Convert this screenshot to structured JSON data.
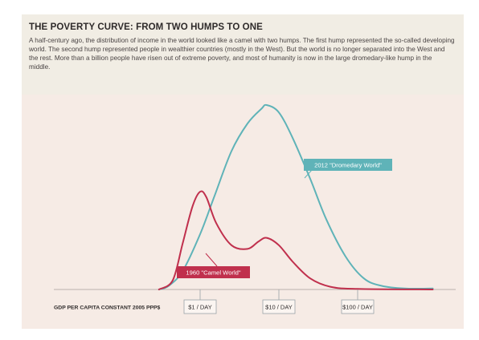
{
  "header": {
    "title": "THE POVERTY CURVE: FROM TWO HUMPS TO ONE",
    "description": "A half-century ago, the distribution of income in the world looked like a camel with two humps. The first hump represented the so-called developing world. The second hump represented people in wealthier countries (mostly in the West). But the world is no longer separated into the West and the rest. More than a billion people have risen out of extreme poverty, and most of humanity is now in the large dromedary-like hump in the middle."
  },
  "chart_data": {
    "type": "line",
    "title": "THE POVERTY CURVE: FROM TWO HUMPS TO ONE",
    "xlabel": "GDP PER CAPITA CONSTANT 2005 PPP$",
    "ylabel": "",
    "x_scale": "log",
    "xlim": [
      0.25,
      1000
    ],
    "ylim": [
      0,
      1
    ],
    "grid": false,
    "x_ticks": [
      {
        "value": 1,
        "label": "$1 / DAY"
      },
      {
        "value": 10,
        "label": "$10 / DAY"
      },
      {
        "value": 100,
        "label": "$100 / DAY"
      }
    ],
    "series": [
      {
        "name": "2012 \"Dromedary World\"",
        "color": "#5fb3b8",
        "points": [
          [
            0.3,
            0.0
          ],
          [
            0.4,
            0.02
          ],
          [
            0.6,
            0.1
          ],
          [
            1.0,
            0.3
          ],
          [
            1.5,
            0.5
          ],
          [
            2.5,
            0.75
          ],
          [
            4,
            0.9
          ],
          [
            6,
            0.98
          ],
          [
            7,
            1.0
          ],
          [
            10,
            0.96
          ],
          [
            15,
            0.82
          ],
          [
            25,
            0.6
          ],
          [
            40,
            0.38
          ],
          [
            70,
            0.18
          ],
          [
            120,
            0.06
          ],
          [
            200,
            0.02
          ],
          [
            400,
            0.005
          ],
          [
            900,
            0.005
          ]
        ]
      },
      {
        "name": "1960 \"Camel World\"",
        "color": "#c0304d",
        "points": [
          [
            0.3,
            0.0
          ],
          [
            0.45,
            0.05
          ],
          [
            0.6,
            0.25
          ],
          [
            0.8,
            0.45
          ],
          [
            1.0,
            0.53
          ],
          [
            1.2,
            0.5
          ],
          [
            1.6,
            0.36
          ],
          [
            2.5,
            0.24
          ],
          [
            4,
            0.22
          ],
          [
            5.5,
            0.26
          ],
          [
            7,
            0.28
          ],
          [
            10,
            0.24
          ],
          [
            15,
            0.15
          ],
          [
            25,
            0.06
          ],
          [
            45,
            0.015
          ],
          [
            100,
            0.003
          ],
          [
            900,
            0.0
          ]
        ]
      }
    ]
  }
}
